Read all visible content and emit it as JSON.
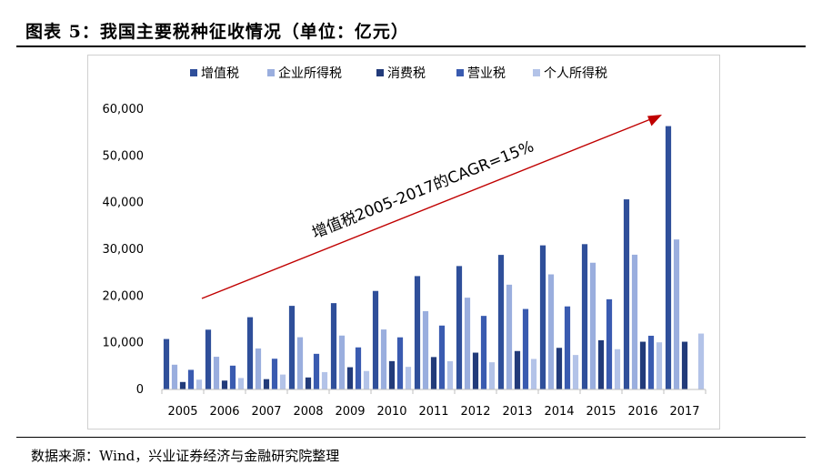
{
  "page": {
    "title": "图表 5：我国主要税种征收情况（单位：亿元）",
    "source": "数据来源：Wind，兴业证券经济与金融研究院整理"
  },
  "chart_data": {
    "type": "bar",
    "title": "图表 5：我国主要税种征收情况（单位：亿元）",
    "unit": "亿元",
    "categories": [
      "2005",
      "2006",
      "2007",
      "2008",
      "2009",
      "2010",
      "2011",
      "2012",
      "2013",
      "2014",
      "2015",
      "2016",
      "2017"
    ],
    "series": [
      {
        "name": "增值税",
        "color": "#2f4f9a",
        "values": [
          10800,
          12800,
          15470,
          17900,
          18480,
          21090,
          24270,
          26420,
          28810,
          30850,
          31110,
          40700,
          56380
        ]
      },
      {
        "name": "企业所得税",
        "color": "#9aaede",
        "values": [
          5300,
          7000,
          8780,
          11180,
          11540,
          12840,
          16770,
          19650,
          22430,
          24640,
          27130,
          28850,
          32110
        ]
      },
      {
        "name": "消费税",
        "color": "#223b7a",
        "values": [
          1600,
          1900,
          2210,
          2570,
          4760,
          6070,
          6940,
          7880,
          8230,
          8910,
          10540,
          10220,
          10220
        ]
      },
      {
        "name": "营业税",
        "color": "#3a5bb0",
        "values": [
          4200,
          5100,
          6580,
          7630,
          9010,
          11160,
          13680,
          15750,
          17230,
          17780,
          19310,
          11500,
          0
        ]
      },
      {
        "name": "个人所得税",
        "color": "#b3c3e8",
        "values": [
          2100,
          2450,
          3190,
          3720,
          3950,
          4840,
          6050,
          5820,
          6530,
          7380,
          8620,
          10090,
          11970
        ]
      }
    ],
    "ylim": [
      0,
      60000
    ],
    "yticks": [
      0,
      10000,
      20000,
      30000,
      40000,
      50000,
      60000
    ],
    "ytick_labels": [
      "0",
      "10,000",
      "20,000",
      "30,000",
      "40,000",
      "50,000",
      "60,000"
    ],
    "xlabel": "",
    "ylabel": "",
    "legend_position": "top",
    "grid": false,
    "annotation": {
      "text": "增值税2005-2017的CAGR=15%",
      "arrow_color": "#c00000"
    }
  }
}
